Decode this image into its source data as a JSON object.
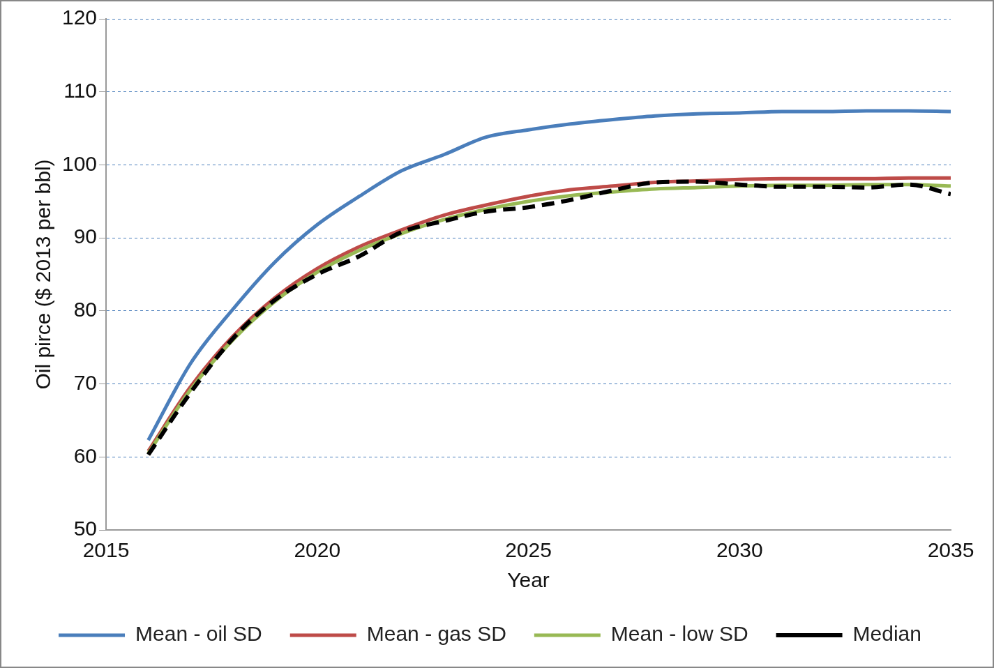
{
  "chart_data": {
    "type": "line",
    "xlabel": "Year",
    "ylabel": "Oil pirce ($ 2013 per bbl)",
    "x": [
      2016,
      2017,
      2018,
      2019,
      2020,
      2021,
      2022,
      2023,
      2024,
      2025,
      2026,
      2027,
      2028,
      2029,
      2030,
      2031,
      2032,
      2033,
      2034,
      2035
    ],
    "xlim": [
      2015,
      2035
    ],
    "xticks": [
      2015,
      2020,
      2025,
      2030,
      2035
    ],
    "ylim": [
      50,
      120
    ],
    "yticks": [
      50,
      60,
      70,
      80,
      90,
      100,
      110,
      120
    ],
    "grid": "y",
    "legend": "bottom",
    "marker": "none",
    "series": [
      {
        "name": "Mean - oil SD",
        "color": "#4a7ebb",
        "line_style": "solid",
        "values": [
          62.3,
          72.8,
          80.2,
          86.7,
          91.8,
          95.7,
          99.2,
          101.4,
          103.8,
          104.8,
          105.6,
          106.2,
          106.7,
          107.0,
          107.1,
          107.3,
          107.3,
          107.4,
          107.4,
          107.3
        ]
      },
      {
        "name": "Mean - gas SD",
        "color": "#be4b48",
        "line_style": "solid",
        "values": [
          60.8,
          69.6,
          76.5,
          81.8,
          85.8,
          88.8,
          91.1,
          93.1,
          94.5,
          95.7,
          96.6,
          97.1,
          97.6,
          97.8,
          98.0,
          98.1,
          98.1,
          98.1,
          98.2,
          98.2
        ]
      },
      {
        "name": "Mean - low SD",
        "color": "#98b954",
        "line_style": "solid",
        "values": [
          60.5,
          69.2,
          76.0,
          81.3,
          85.3,
          88.3,
          90.6,
          92.5,
          93.9,
          95.0,
          95.8,
          96.3,
          96.7,
          96.9,
          97.1,
          97.2,
          97.2,
          97.3,
          97.3,
          97.1
        ]
      },
      {
        "name": "Median",
        "color": "#000000",
        "line_style": "dashed",
        "values": [
          60.3,
          68.8,
          76.2,
          81.5,
          85.0,
          87.5,
          90.8,
          92.3,
          93.6,
          94.2,
          95.2,
          96.5,
          97.6,
          97.7,
          97.3,
          97.0,
          97.0,
          96.9,
          97.3,
          96.0
        ]
      }
    ]
  }
}
